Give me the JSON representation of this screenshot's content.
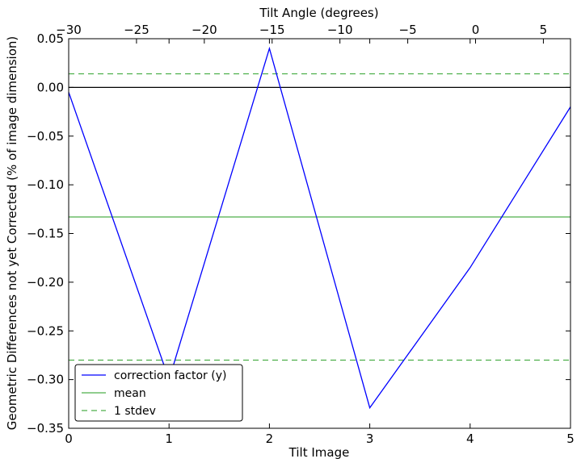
{
  "chart_data": {
    "type": "line",
    "xlabel": "Tilt Image",
    "ylabel": "Geometric Differences not yet Corrected (% of image dimension)",
    "top_xlabel": "Tilt Angle (degrees)",
    "xlim": [
      0,
      5
    ],
    "ylim": [
      -0.35,
      0.05
    ],
    "top_xlim": [
      -30,
      7
    ],
    "x_ticks": [
      0,
      1,
      2,
      3,
      4,
      5
    ],
    "x_tick_labels": [
      "0",
      "1",
      "2",
      "3",
      "4",
      "5"
    ],
    "y_ticks": [
      0.05,
      0.0,
      -0.05,
      -0.1,
      -0.15,
      -0.2,
      -0.25,
      -0.3,
      -0.35
    ],
    "y_tick_labels": [
      "0.05",
      "0.00",
      "−0.05",
      "−0.10",
      "−0.15",
      "−0.20",
      "−0.25",
      "−0.30",
      "−0.35"
    ],
    "top_ticks": [
      -30,
      -25,
      -20,
      -15,
      -10,
      -5,
      0,
      5
    ],
    "top_tick_labels": [
      "−30",
      "−25",
      "−20",
      "−15",
      "−10",
      "−5",
      "0",
      "5"
    ],
    "series": [
      {
        "name": "correction factor (y)",
        "color": "#0000ff",
        "style": "solid",
        "x": [
          0,
          1,
          2,
          3,
          4,
          5
        ],
        "values": [
          -0.005,
          -0.3,
          0.04,
          -0.329,
          -0.185,
          -0.02
        ]
      }
    ],
    "reference_lines": [
      {
        "name": "zero",
        "y": 0.0,
        "color": "#000000",
        "style": "solid"
      },
      {
        "name": "mean",
        "y": -0.133,
        "color": "#4daf4a",
        "style": "solid"
      },
      {
        "name": "1 stdev",
        "y": 0.014,
        "color": "#4daf4a",
        "style": "dashed"
      },
      {
        "name": "1 stdev",
        "y": -0.28,
        "color": "#4daf4a",
        "style": "dashed"
      }
    ],
    "legend": {
      "position": "lower-left",
      "entries": [
        {
          "label": "correction factor (y)",
          "color": "#0000ff",
          "style": "solid"
        },
        {
          "label": "mean",
          "color": "#4daf4a",
          "style": "solid"
        },
        {
          "label": "1 stdev",
          "color": "#4daf4a",
          "style": "dashed"
        }
      ]
    },
    "grid": false
  }
}
